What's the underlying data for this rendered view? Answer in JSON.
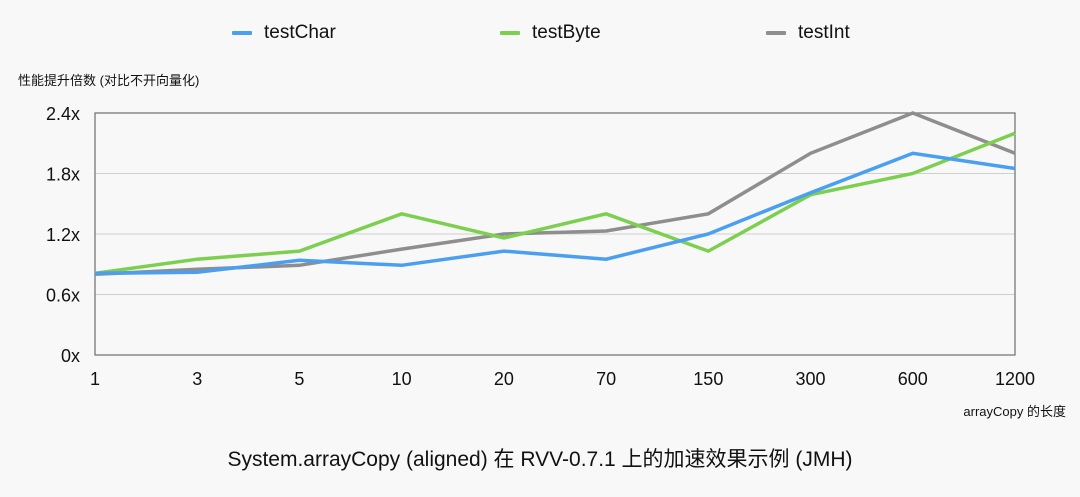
{
  "legend": [
    {
      "name": "testChar",
      "color": "#4a9ff0"
    },
    {
      "name": "testByte",
      "color": "#7ccf4f"
    },
    {
      "name": "testInt",
      "color": "#8e8e8e"
    }
  ],
  "labels": {
    "ylabel": "性能提升倍数 (对比不开向量化)",
    "xlabel": "arrayCopy 的长度",
    "title": "System.arrayCopy (aligned) 在 RVV-0.7.1 上的加速效果示例 (JMH)"
  },
  "chart_data": {
    "type": "line",
    "title": "System.arrayCopy (aligned) 在 RVV-0.7.1 上的加速效果示例 (JMH)",
    "xlabel": "arrayCopy 的长度",
    "ylabel": "性能提升倍数 (对比不开向量化)",
    "categories": [
      "1",
      "3",
      "5",
      "10",
      "20",
      "70",
      "150",
      "300",
      "600",
      "1200"
    ],
    "y_ticks": [
      "0x",
      "0.6x",
      "1.2x",
      "1.8x",
      "2.4x"
    ],
    "ylim": [
      0,
      2.4
    ],
    "grid": true,
    "legend_position": "top",
    "series": [
      {
        "name": "testChar",
        "color": "#4a9ff0",
        "values": [
          0.81,
          0.82,
          0.94,
          0.89,
          1.03,
          0.95,
          1.2,
          1.61,
          2.0,
          1.85
        ]
      },
      {
        "name": "testByte",
        "color": "#7ccf4f",
        "values": [
          0.81,
          0.95,
          1.03,
          1.4,
          1.16,
          1.4,
          1.03,
          1.59,
          1.8,
          2.2
        ]
      },
      {
        "name": "testInt",
        "color": "#8e8e8e",
        "values": [
          0.8,
          0.85,
          0.89,
          1.05,
          1.2,
          1.23,
          1.4,
          2.0,
          2.4,
          2.0
        ]
      }
    ]
  }
}
